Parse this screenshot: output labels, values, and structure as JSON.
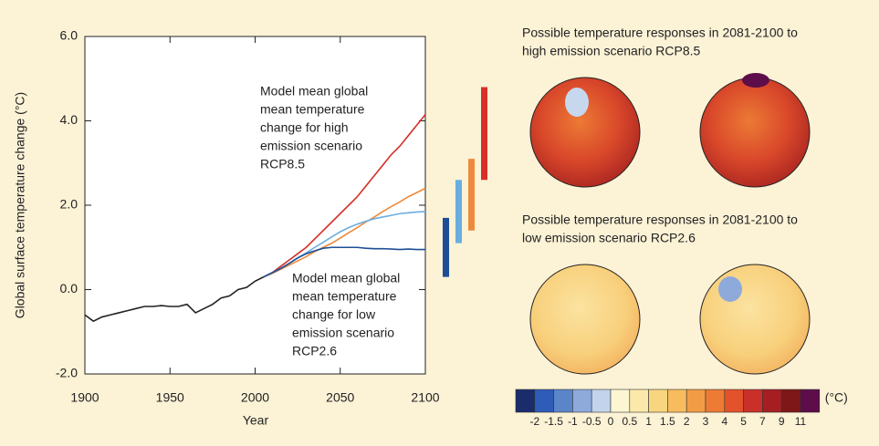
{
  "chart_data": {
    "type": "line",
    "xlabel": "Year",
    "ylabel": "Global surface temperature change (°C)",
    "xlim": [
      1900,
      2100
    ],
    "ylim": [
      -2,
      6
    ],
    "xticks": [
      1900,
      1950,
      2000,
      2050,
      2100
    ],
    "yticks": [
      {
        "value": -2,
        "label": "-2.0"
      },
      {
        "value": 0,
        "label": "0.0"
      },
      {
        "value": 2,
        "label": "2.0"
      },
      {
        "value": 4,
        "label": "4.0"
      },
      {
        "value": 6,
        "label": "6.0"
      }
    ],
    "series": [
      {
        "color": "#222222",
        "x": [
          1900,
          1905,
          1910,
          1915,
          1920,
          1925,
          1930,
          1935,
          1940,
          1945,
          1950,
          1955,
          1960,
          1965,
          1970,
          1975,
          1980,
          1985,
          1990,
          1995,
          2000,
          2005
        ],
        "values": [
          -0.6,
          -0.75,
          -0.65,
          -0.6,
          -0.55,
          -0.5,
          -0.45,
          -0.4,
          -0.4,
          -0.38,
          -0.4,
          -0.4,
          -0.35,
          -0.55,
          -0.45,
          -0.35,
          -0.2,
          -0.15,
          0.0,
          0.05,
          0.2,
          0.3
        ]
      },
      {
        "color": "#d7302a",
        "x": [
          2005,
          2010,
          2015,
          2020,
          2025,
          2030,
          2035,
          2040,
          2045,
          2050,
          2055,
          2060,
          2065,
          2070,
          2075,
          2080,
          2085,
          2090,
          2095,
          2100
        ],
        "values": [
          0.3,
          0.4,
          0.55,
          0.7,
          0.85,
          1.0,
          1.2,
          1.4,
          1.6,
          1.8,
          2.0,
          2.2,
          2.45,
          2.7,
          2.95,
          3.2,
          3.4,
          3.65,
          3.9,
          4.15
        ]
      },
      {
        "color": "#ee8a3c",
        "x": [
          2005,
          2010,
          2015,
          2020,
          2025,
          2030,
          2035,
          2040,
          2045,
          2050,
          2055,
          2060,
          2065,
          2070,
          2075,
          2080,
          2085,
          2090,
          2095,
          2100
        ],
        "values": [
          0.3,
          0.38,
          0.48,
          0.58,
          0.68,
          0.78,
          0.9,
          1.0,
          1.1,
          1.22,
          1.35,
          1.47,
          1.6,
          1.72,
          1.85,
          1.97,
          2.08,
          2.2,
          2.3,
          2.4
        ]
      },
      {
        "color": "#6aaee0",
        "x": [
          2005,
          2010,
          2015,
          2020,
          2025,
          2030,
          2035,
          2040,
          2045,
          2050,
          2055,
          2060,
          2065,
          2070,
          2075,
          2080,
          2085,
          2090,
          2095,
          2100
        ],
        "values": [
          0.3,
          0.4,
          0.5,
          0.62,
          0.75,
          0.87,
          1.0,
          1.12,
          1.25,
          1.37,
          1.47,
          1.55,
          1.62,
          1.68,
          1.72,
          1.76,
          1.8,
          1.82,
          1.84,
          1.85
        ]
      },
      {
        "color": "#1f4e96",
        "x": [
          2005,
          2010,
          2015,
          2020,
          2025,
          2030,
          2035,
          2040,
          2045,
          2050,
          2055,
          2060,
          2065,
          2070,
          2075,
          2080,
          2085,
          2090,
          2095,
          2100
        ],
        "values": [
          0.3,
          0.4,
          0.5,
          0.62,
          0.75,
          0.85,
          0.92,
          0.98,
          1.0,
          1.0,
          1.0,
          1.0,
          0.98,
          0.97,
          0.97,
          0.96,
          0.95,
          0.96,
          0.95,
          0.95
        ]
      }
    ],
    "range_bars": [
      {
        "color": "#1f4e96",
        "low": 0.3,
        "high": 1.7
      },
      {
        "color": "#6aaee0",
        "low": 1.1,
        "high": 2.6
      },
      {
        "color": "#ee8a3c",
        "low": 1.4,
        "high": 3.1
      },
      {
        "color": "#d7302a",
        "low": 2.6,
        "high": 4.8
      }
    ],
    "annotations": [
      {
        "color": "#d7302a",
        "lines": [
          "Model mean global",
          "mean temperature",
          "change for high",
          "emission scenario",
          "RCP8.5"
        ]
      },
      {
        "color": "#1f4e96",
        "lines": [
          "Model mean global",
          "mean temperature",
          "change for low",
          "emission scenario",
          "RCP2.6"
        ]
      }
    ],
    "map_panels": [
      {
        "color": "#d7302a",
        "title_lines": [
          "Possible temperature responses in 2081-2100 to",
          "high emission scenario RCP8.5"
        ]
      },
      {
        "color": "#1f4e96",
        "title_lines": [
          "Possible temperature responses in 2081-2100 to",
          "low emission scenario RCP2.6"
        ]
      }
    ],
    "colorbar": {
      "unit": "(°C)",
      "colors": [
        "#1b2c6b",
        "#2e5cb8",
        "#5b85c9",
        "#8eaadb",
        "#c3d3ec",
        "#fdf6d3",
        "#fbe9a9",
        "#f8d57f",
        "#f6bc5e",
        "#f29c45",
        "#ed7b35",
        "#e3522b",
        "#c9302a",
        "#a51f22",
        "#7e1718",
        "#5c0d4a"
      ],
      "labels": [
        -2,
        -1.5,
        -1,
        -0.5,
        0,
        0.5,
        1,
        1.5,
        2,
        3,
        4,
        5,
        7,
        9,
        11
      ]
    }
  }
}
